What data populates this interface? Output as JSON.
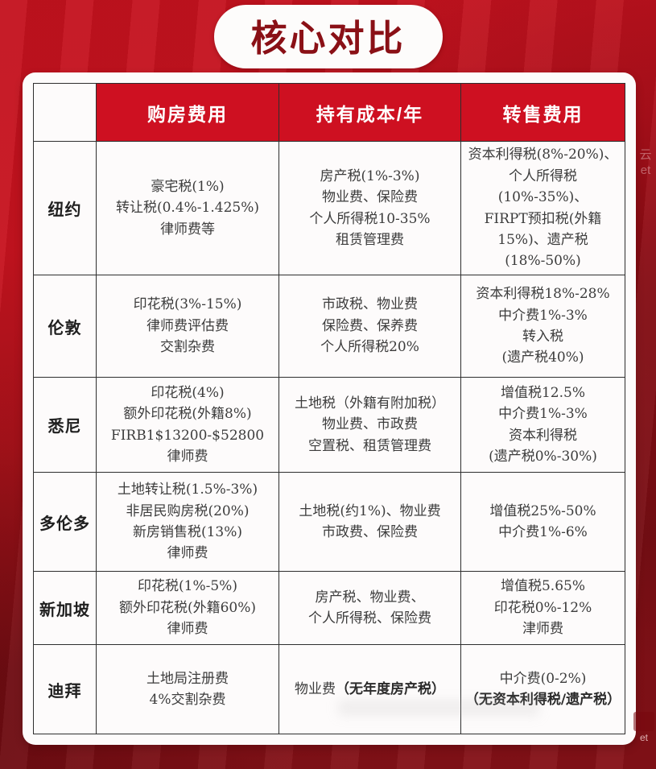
{
  "page": {
    "title": "核心对比"
  },
  "watermark": {
    "side_char": "云",
    "side_suffix": "et",
    "bottom_suffix": "et"
  },
  "colors": {
    "background_top": "#c3121e",
    "background_bottom": "#851117",
    "header_red": "#ce1021",
    "title_red": "#8a1016",
    "border": "#2e2e2e",
    "cell_text": "#3c3c3c"
  },
  "table": {
    "headers": [
      "",
      "购房费用",
      "持有成本/年",
      "转售费用"
    ],
    "rows": [
      {
        "city": "纽约",
        "purchase": [
          "豪宅税(1%)",
          "转让税(0.4%-1.425%)",
          "律师费等"
        ],
        "holding": [
          "房产税(1%-3%)",
          "物业费、保险费",
          "个人所得税10-35%",
          "租赁管理费"
        ],
        "resale": [
          "资本利得税(8%-20%)、",
          "个人所得税(10%-35%)、",
          "FIRPT预扣税(外籍",
          "15%)、遗产税",
          "(18%-50%)"
        ]
      },
      {
        "city": "伦敦",
        "purchase": [
          "印花税(3%-15%)",
          "律师费评估费",
          "交割杂费"
        ],
        "holding": [
          "市政税、物业费",
          "保险费、保养费",
          "个人所得税20%"
        ],
        "resale": [
          "资本利得税18%-28%",
          "中介费1%-3%",
          "转入税",
          "(遗产税40%)"
        ]
      },
      {
        "city": "悉尼",
        "purchase": [
          "印花税(4%)",
          "额外印花税(外籍8%)",
          "FIRB1$13200-$52800",
          "律师费"
        ],
        "holding": [
          "土地税（外籍有附加税）",
          "物业费、市政费",
          "空置税、租赁管理费"
        ],
        "resale": [
          "增值税12.5%",
          "中介费1%-3%",
          "资本利得税",
          "(遗产税0%-30%)"
        ]
      },
      {
        "city": "多伦多",
        "purchase": [
          "土地转让税(1.5%-3%)",
          "非居民购房税(20%)",
          "新房销售税(13%)",
          "律师费"
        ],
        "holding": [
          "土地税(约1%)、物业费",
          "市政费、保险费"
        ],
        "resale": [
          "增值税25%-50%",
          "中介费1%-6%"
        ]
      },
      {
        "city": "新加坡",
        "purchase": [
          "印花税(1%-5%)",
          "额外印花税(外籍60%)",
          "律师费"
        ],
        "holding": [
          "房产税、物业费、",
          "个人所得税、保险费"
        ],
        "resale": [
          "增值税5.65%",
          "印花税0%-12%",
          "津师费"
        ]
      },
      {
        "city": "迪拜",
        "purchase": [
          "土地局注册费",
          "4%交割杂费"
        ],
        "holding": [
          {
            "parts": [
              {
                "text": "物业费",
                "bold": false
              },
              {
                "text": "（无年度房产税）",
                "bold": true
              }
            ]
          }
        ],
        "resale": [
          "中介费(0-2%)",
          {
            "text": "（无资本利得税/遗产税）",
            "bold": true
          }
        ]
      }
    ]
  }
}
